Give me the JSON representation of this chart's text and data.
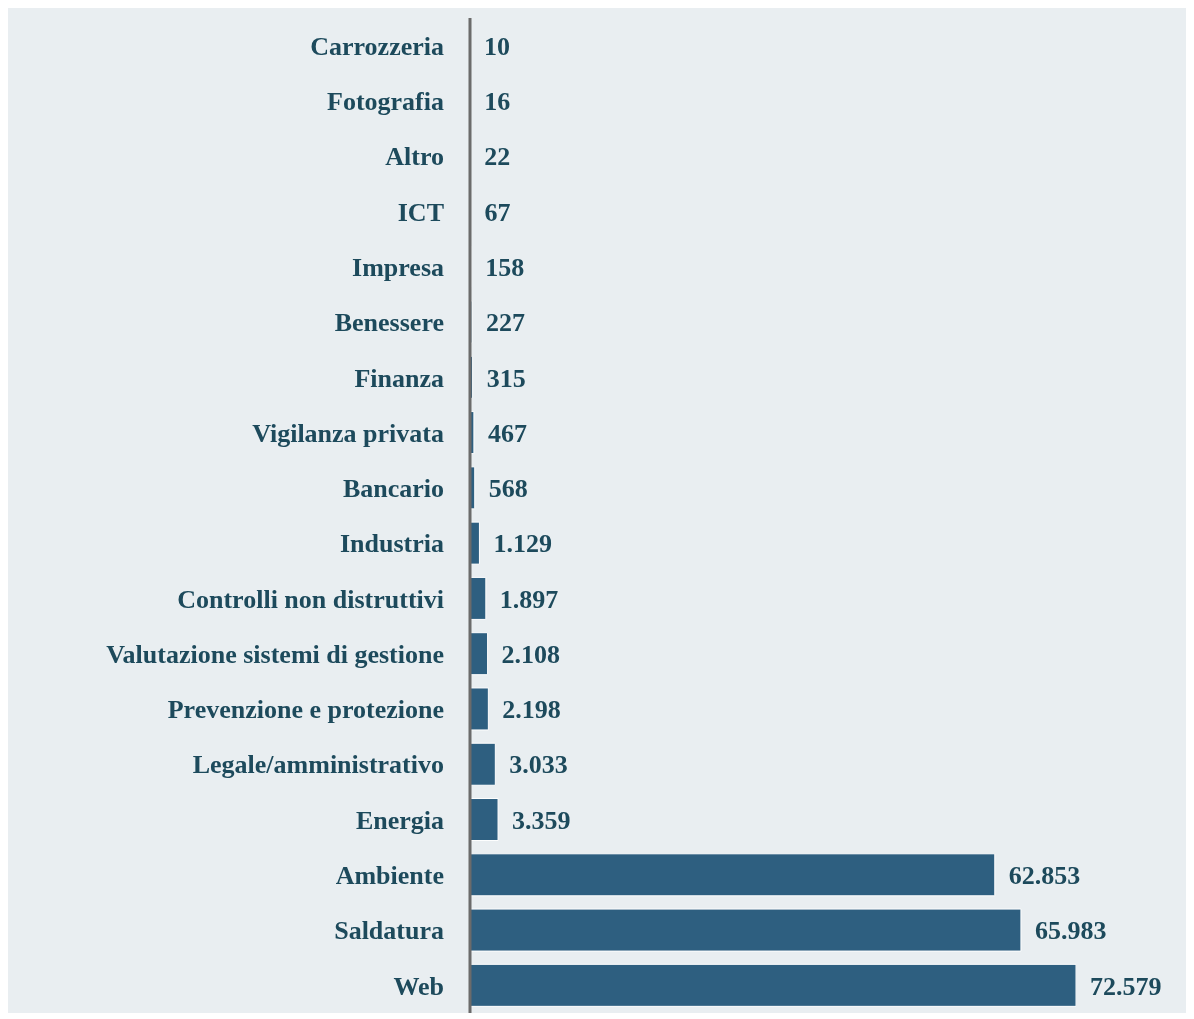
{
  "chart_data": {
    "type": "bar",
    "orientation": "horizontal",
    "categories": [
      "Carrozzeria",
      "Fotografia",
      "Altro",
      "ICT",
      "Impresa",
      "Benessere",
      "Finanza",
      "Vigilanza privata",
      "Bancario",
      "Industria",
      "Controlli non distruttivi",
      "Valutazione sistemi di gestione",
      "Prevenzione e protezione",
      "Legale/amministrativo",
      "Energia",
      "Ambiente",
      "Saldatura",
      "Web"
    ],
    "values": [
      10,
      16,
      22,
      67,
      158,
      227,
      315,
      467,
      568,
      1129,
      1897,
      2108,
      2198,
      3033,
      3359,
      62853,
      65983,
      72579
    ],
    "value_labels": [
      "10",
      "16",
      "22",
      "67",
      "158",
      "227",
      "315",
      "467",
      "568",
      "1.129",
      "1.897",
      "2.108",
      "2.198",
      "3.033",
      "3.359",
      "62.853",
      "65.983",
      "72.579"
    ],
    "color": "#2e5f80"
  }
}
